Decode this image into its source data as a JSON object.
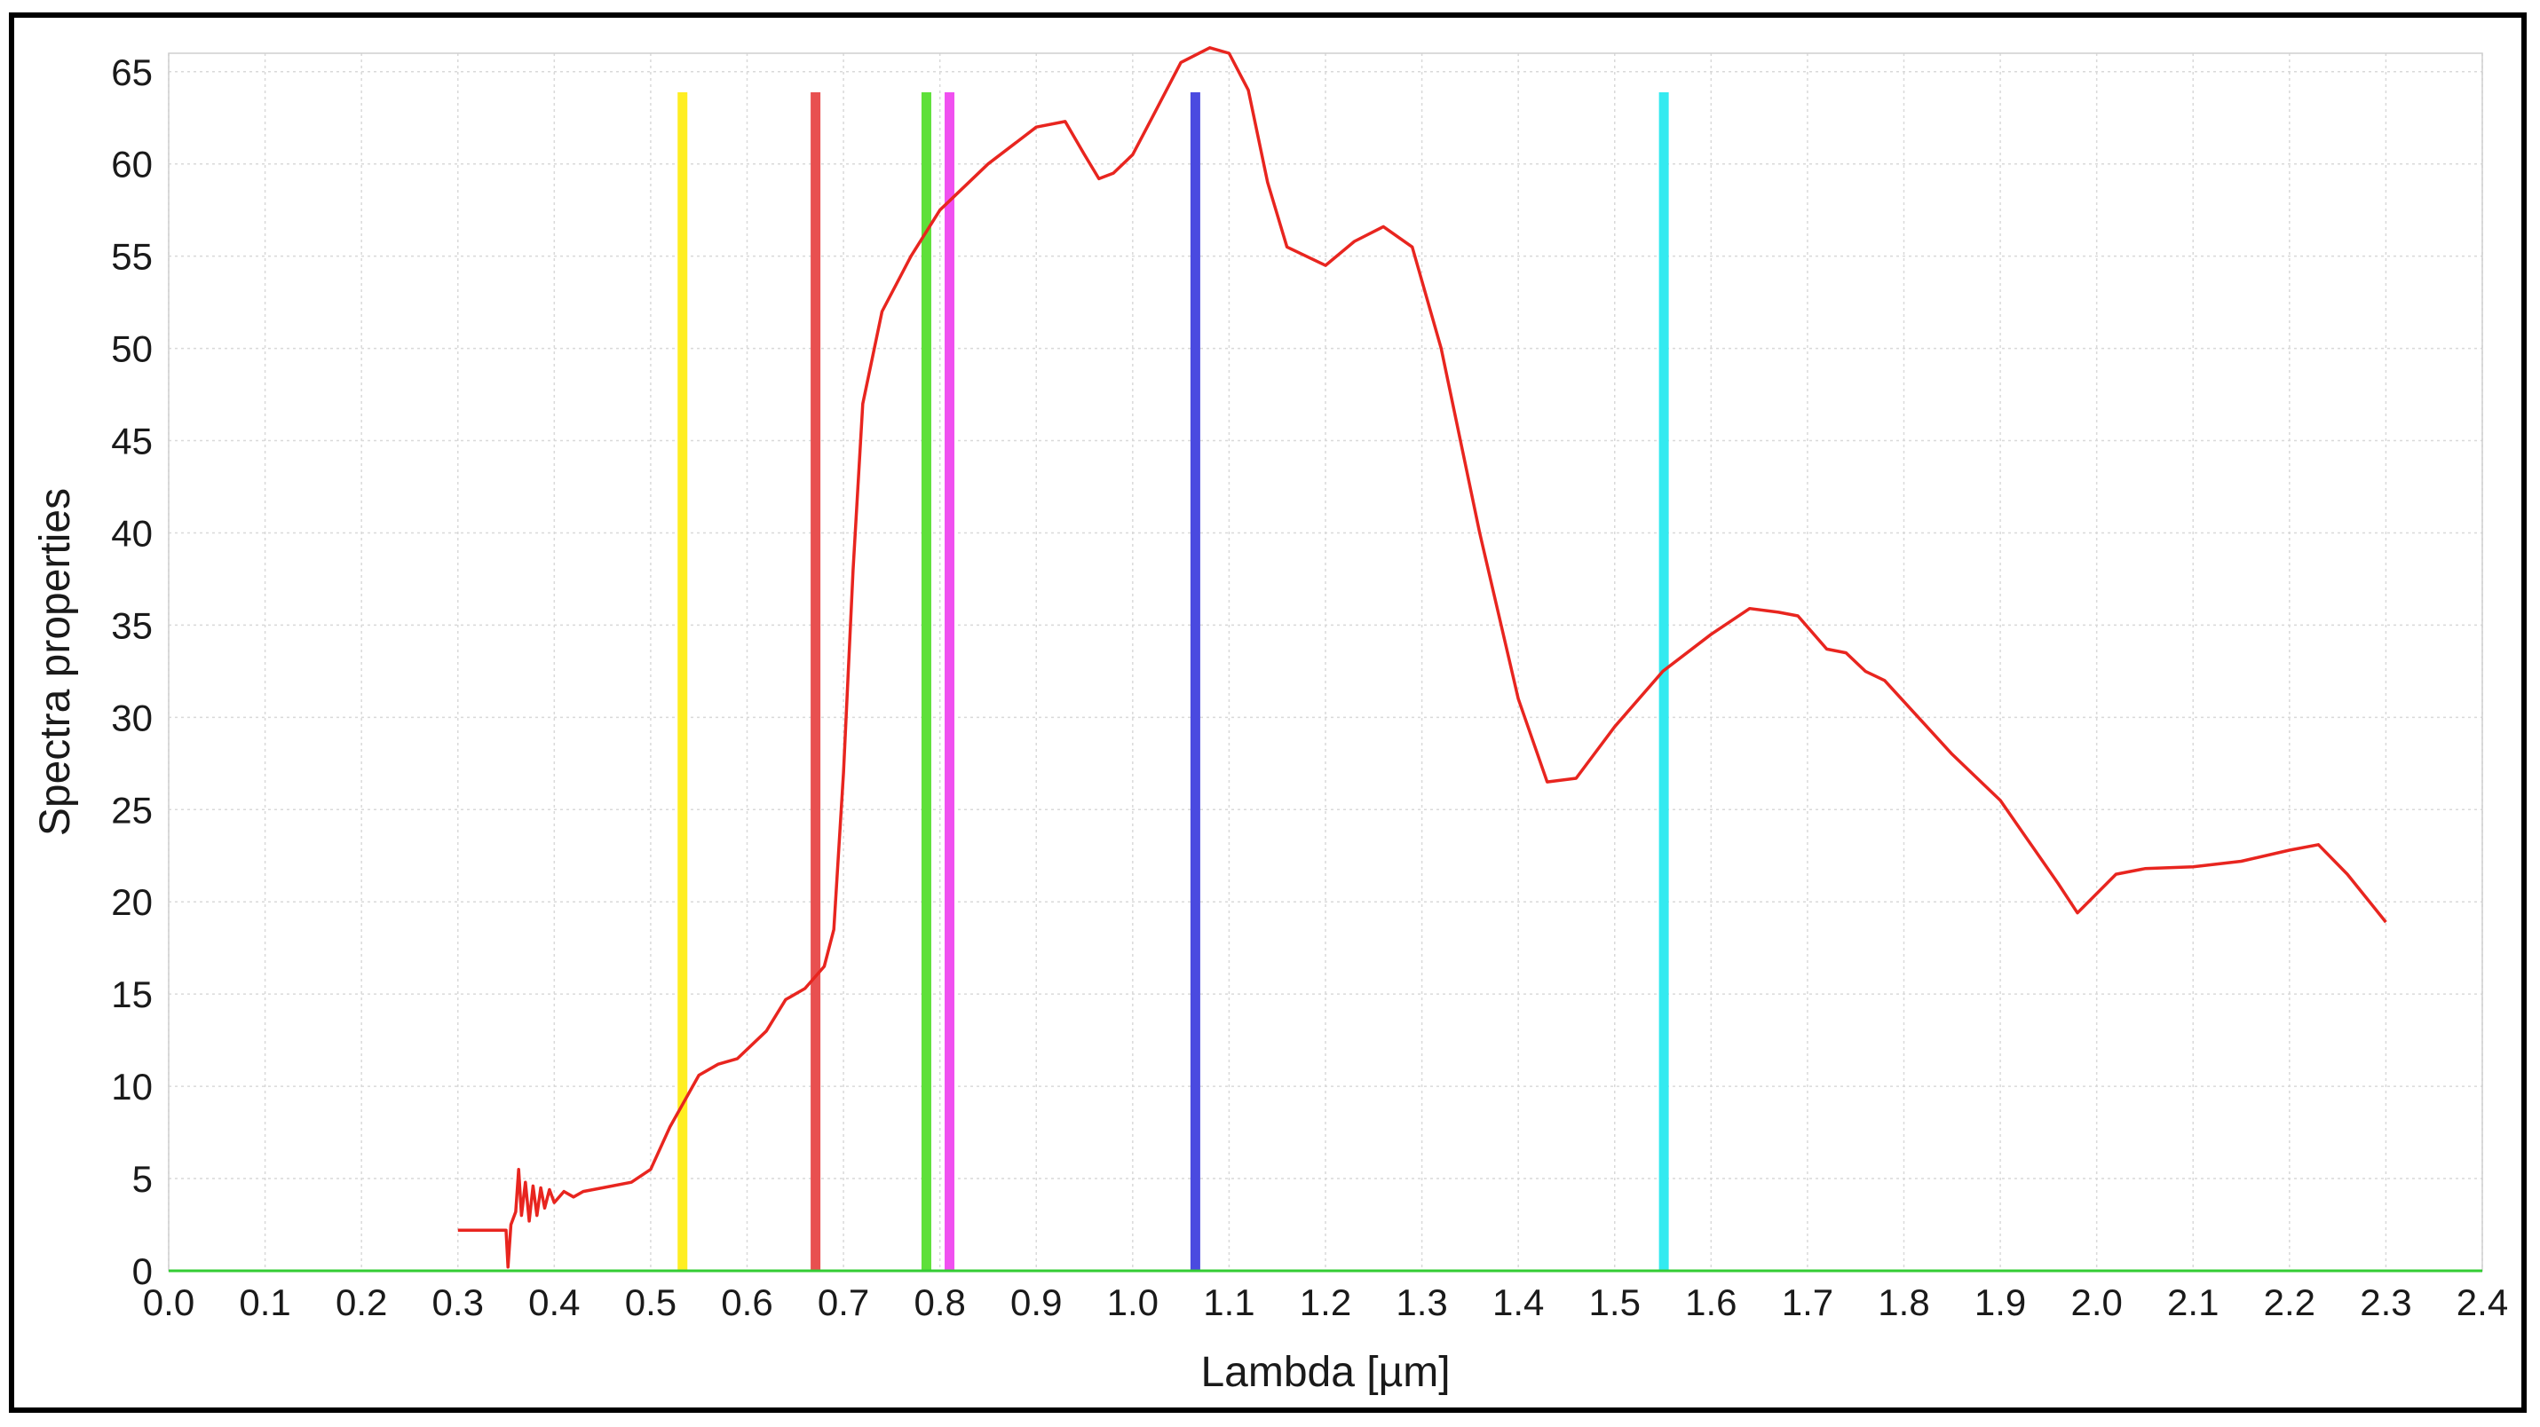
{
  "chart_data": {
    "type": "line",
    "title": "",
    "xlabel": "Lambda [µm]",
    "ylabel": "Spectra properties",
    "xlim": [
      0.0,
      2.4
    ],
    "ylim": [
      0,
      66
    ],
    "grid": true,
    "x_ticks": [
      "0.0",
      "0.1",
      "0.2",
      "0.3",
      "0.4",
      "0.5",
      "0.6",
      "0.7",
      "0.8",
      "0.9",
      "1.0",
      "1.1",
      "1.2",
      "1.3",
      "1.4",
      "1.5",
      "1.6",
      "1.7",
      "1.8",
      "1.9",
      "2.0",
      "2.1",
      "2.2",
      "2.3",
      "2.4"
    ],
    "y_ticks": [
      "0",
      "5",
      "10",
      "15",
      "20",
      "25",
      "30",
      "35",
      "40",
      "45",
      "50",
      "55",
      "60",
      "65"
    ],
    "series": [
      {
        "color": "#e8251f",
        "points": [
          [
            0.3,
            2.2
          ],
          [
            0.35,
            2.2
          ],
          [
            0.352,
            0.2
          ],
          [
            0.355,
            2.5
          ],
          [
            0.36,
            3.2
          ],
          [
            0.363,
            5.5
          ],
          [
            0.366,
            3.0
          ],
          [
            0.37,
            4.8
          ],
          [
            0.374,
            2.7
          ],
          [
            0.378,
            4.6
          ],
          [
            0.382,
            3.0
          ],
          [
            0.386,
            4.5
          ],
          [
            0.39,
            3.4
          ],
          [
            0.395,
            4.4
          ],
          [
            0.4,
            3.7
          ],
          [
            0.41,
            4.3
          ],
          [
            0.42,
            4.0
          ],
          [
            0.43,
            4.3
          ],
          [
            0.45,
            4.5
          ],
          [
            0.48,
            4.8
          ],
          [
            0.5,
            5.5
          ],
          [
            0.52,
            7.8
          ],
          [
            0.55,
            10.6
          ],
          [
            0.57,
            11.2
          ],
          [
            0.59,
            11.5
          ],
          [
            0.62,
            13.0
          ],
          [
            0.64,
            14.7
          ],
          [
            0.66,
            15.3
          ],
          [
            0.68,
            16.5
          ],
          [
            0.69,
            18.5
          ],
          [
            0.7,
            27.0
          ],
          [
            0.71,
            38.0
          ],
          [
            0.72,
            47.0
          ],
          [
            0.74,
            52.0
          ],
          [
            0.77,
            55.0
          ],
          [
            0.8,
            57.5
          ],
          [
            0.85,
            60.0
          ],
          [
            0.9,
            62.0
          ],
          [
            0.93,
            62.3
          ],
          [
            0.95,
            60.5
          ],
          [
            0.965,
            59.2
          ],
          [
            0.98,
            59.5
          ],
          [
            1.0,
            60.5
          ],
          [
            1.02,
            62.5
          ],
          [
            1.05,
            65.5
          ],
          [
            1.08,
            66.3
          ],
          [
            1.1,
            66.0
          ],
          [
            1.12,
            64.0
          ],
          [
            1.14,
            59.0
          ],
          [
            1.16,
            55.5
          ],
          [
            1.2,
            54.5
          ],
          [
            1.23,
            55.8
          ],
          [
            1.26,
            56.6
          ],
          [
            1.29,
            55.5
          ],
          [
            1.32,
            50.0
          ],
          [
            1.36,
            40.0
          ],
          [
            1.4,
            31.0
          ],
          [
            1.43,
            26.5
          ],
          [
            1.46,
            26.7
          ],
          [
            1.5,
            29.5
          ],
          [
            1.55,
            32.5
          ],
          [
            1.6,
            34.5
          ],
          [
            1.64,
            35.9
          ],
          [
            1.67,
            35.7
          ],
          [
            1.69,
            35.5
          ],
          [
            1.72,
            33.7
          ],
          [
            1.74,
            33.5
          ],
          [
            1.76,
            32.5
          ],
          [
            1.78,
            32.0
          ],
          [
            1.85,
            28.0
          ],
          [
            1.9,
            25.5
          ],
          [
            1.96,
            21.0
          ],
          [
            1.98,
            19.4
          ],
          [
            2.02,
            21.5
          ],
          [
            2.05,
            21.8
          ],
          [
            2.1,
            21.9
          ],
          [
            2.15,
            22.2
          ],
          [
            2.2,
            22.8
          ],
          [
            2.23,
            23.1
          ],
          [
            2.26,
            21.5
          ],
          [
            2.28,
            20.2
          ],
          [
            2.3,
            18.9
          ]
        ]
      }
    ],
    "vertical_lines": [
      {
        "x": 0.533,
        "color": "#ffee22"
      },
      {
        "x": 0.671,
        "color": "#e85050"
      },
      {
        "x": 0.786,
        "color": "#5ee03a"
      },
      {
        "x": 0.81,
        "color": "#f050f0"
      },
      {
        "x": 1.065,
        "color": "#4a4ae0"
      },
      {
        "x": 1.551,
        "color": "#33eaf0"
      }
    ],
    "baseline_color": "#33cc33",
    "grid_color": "#d9d9d9"
  }
}
